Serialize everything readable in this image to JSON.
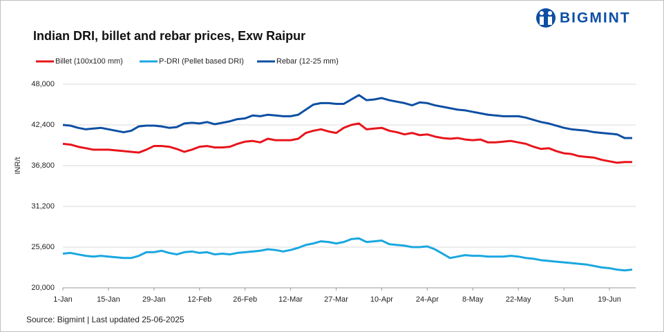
{
  "chart_data": {
    "type": "line",
    "title": "Indian DRI, billet and rebar prices, Exw  Raipur",
    "logo": "BIGMINT",
    "ylabel": "INR/t",
    "source": "Source: Bigmint | Last updated 25-06-2025",
    "grid": true,
    "legend": "top-left",
    "categories": [
      "1-Jan",
      null,
      null,
      null,
      null,
      null,
      "15-Jan",
      null,
      null,
      null,
      null,
      null,
      "29-Jan",
      null,
      null,
      null,
      null,
      null,
      "12-Feb",
      null,
      null,
      null,
      null,
      null,
      "26-Feb",
      null,
      null,
      null,
      null,
      null,
      "12-Mar",
      null,
      null,
      null,
      null,
      null,
      "27-Mar",
      null,
      null,
      null,
      null,
      null,
      "10-Apr",
      null,
      null,
      null,
      null,
      null,
      "24-Apr",
      null,
      null,
      null,
      null,
      null,
      "8-May",
      null,
      null,
      null,
      null,
      null,
      "22-May",
      null,
      null,
      null,
      null,
      null,
      "5-Jun",
      null,
      null,
      null,
      null,
      null,
      "19-Jun",
      null,
      null,
      null
    ],
    "ylim": [
      20000,
      48000
    ],
    "yticks": [
      {
        "value": 20000,
        "label": "20,000"
      },
      {
        "value": 25600,
        "label": "25,600"
      },
      {
        "value": 31200,
        "label": "31,200"
      },
      {
        "value": 36800,
        "label": "36,800"
      },
      {
        "value": 42400,
        "label": "42,400"
      },
      {
        "value": 48000,
        "label": "48,000"
      }
    ],
    "series": [
      {
        "name": "Billet (100x100 mm)",
        "color": "#e8141b",
        "values": [
          39800,
          39700,
          39400,
          39200,
          39000,
          39000,
          39000,
          38900,
          38800,
          38700,
          38600,
          39000,
          39500,
          39500,
          39400,
          39100,
          38700,
          39000,
          39400,
          39500,
          39300,
          39300,
          39400,
          39800,
          40100,
          40200,
          40000,
          40500,
          40300,
          40300,
          40300,
          40500,
          41300,
          41600,
          41800,
          41500,
          41300,
          42000,
          42400,
          42600,
          41800,
          41900,
          42000,
          41600,
          41400,
          41100,
          41300,
          41000,
          41100,
          40800,
          40600,
          40500,
          40600,
          40400,
          40300,
          40400,
          40000,
          40000,
          40100,
          40200,
          40000,
          39800,
          39400,
          39100,
          39200,
          38800,
          38500,
          38400,
          38100,
          38000,
          37900,
          37600,
          37400,
          37200,
          37300,
          37300
        ]
      },
      {
        "name": "P-DRI (Pellet based DRI)",
        "color": "#1aa7e0",
        "values": [
          24700,
          24800,
          24600,
          24400,
          24300,
          24400,
          24300,
          24200,
          24100,
          24100,
          24400,
          24900,
          24900,
          25100,
          24800,
          24600,
          24900,
          25000,
          24800,
          24900,
          24600,
          24700,
          24600,
          24800,
          24900,
          25000,
          25100,
          25300,
          25200,
          25000,
          25200,
          25500,
          25900,
          26100,
          26400,
          26300,
          26100,
          26300,
          26700,
          26800,
          26300,
          26400,
          26500,
          26000,
          25900,
          25800,
          25600,
          25600,
          25700,
          25300,
          24700,
          24100,
          24300,
          24500,
          24400,
          24400,
          24300,
          24300,
          24300,
          24400,
          24300,
          24100,
          24000,
          23800,
          23700,
          23600,
          23500,
          23400,
          23300,
          23200,
          23000,
          22800,
          22700,
          22500,
          22400,
          22500
        ]
      },
      {
        "name": "Rebar (12-25 mm)",
        "color": "#0d4fa3",
        "values": [
          42400,
          42300,
          42000,
          41800,
          41900,
          42000,
          41800,
          41600,
          41400,
          41600,
          42200,
          42300,
          42300,
          42200,
          42000,
          42100,
          42600,
          42700,
          42600,
          42800,
          42500,
          42700,
          42900,
          43200,
          43300,
          43700,
          43600,
          43800,
          43700,
          43600,
          43600,
          43800,
          44500,
          45200,
          45400,
          45400,
          45300,
          45300,
          45900,
          46500,
          45800,
          45900,
          46100,
          45800,
          45600,
          45400,
          45100,
          45500,
          45400,
          45100,
          44900,
          44700,
          44500,
          44400,
          44200,
          44000,
          43800,
          43700,
          43600,
          43600,
          43600,
          43400,
          43100,
          42800,
          42600,
          42300,
          42000,
          41800,
          41700,
          41600,
          41400,
          41300,
          41200,
          41100,
          40600,
          40600
        ]
      }
    ]
  }
}
